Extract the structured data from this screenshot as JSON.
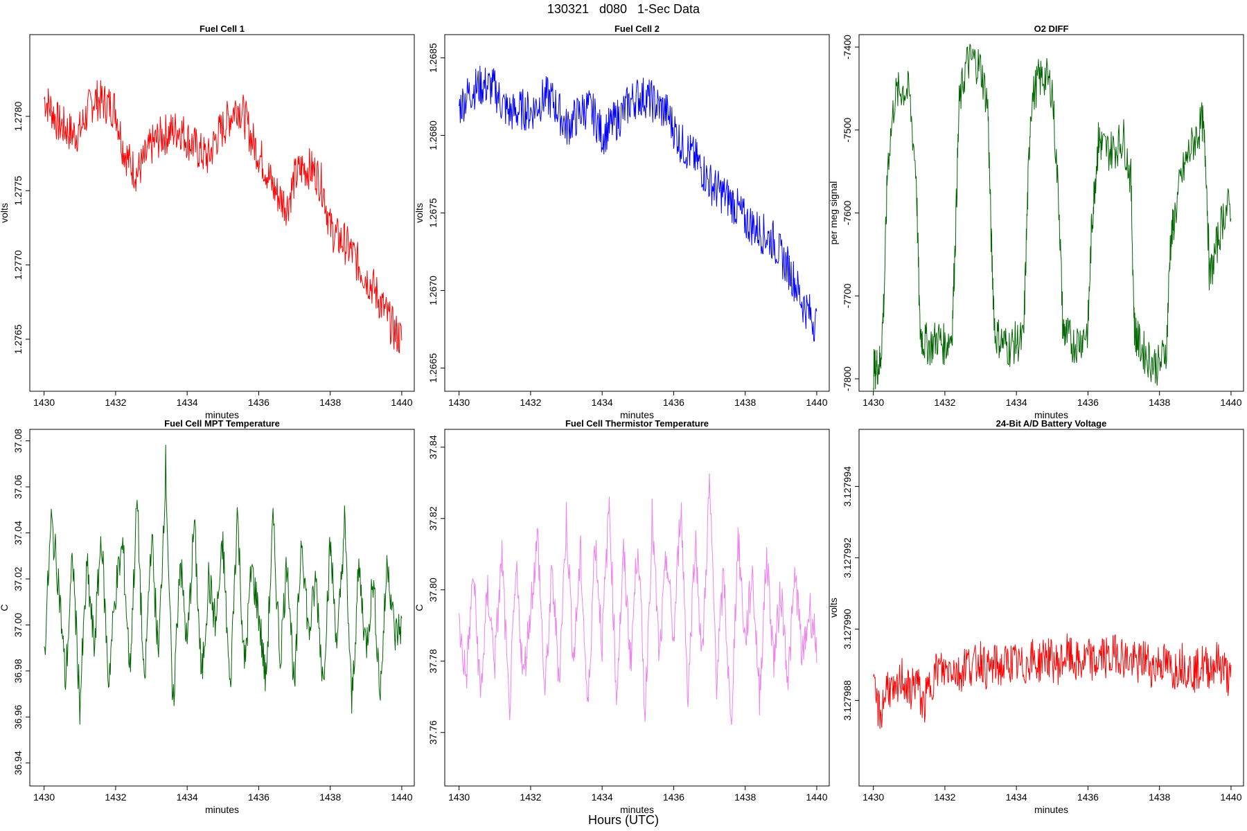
{
  "figure": {
    "title": "130321   d080   1-Sec Data",
    "xlabel": "Hours (UTC)"
  },
  "chart_data": [
    {
      "type": "line",
      "title": "Fuel Cell 1",
      "xlabel": "minutes",
      "ylabel": "volts",
      "color": "#ff0000",
      "xlim": [
        1429.6,
        1440.35
      ],
      "ylim": [
        1.27615,
        1.27855
      ],
      "xticks": [
        "1430",
        "1432",
        "1434",
        "1436",
        "1438",
        "1440"
      ],
      "yticks": [
        "1.2765",
        "1.2770",
        "1.2775",
        "1.2780"
      ],
      "series": [
        {
          "x": [
            1430.0,
            1430.2,
            1430.4,
            1430.6,
            1430.8,
            1431.0,
            1431.2,
            1431.4,
            1431.6,
            1431.8,
            1432.0,
            1432.2,
            1432.4,
            1432.6,
            1432.8,
            1433.0,
            1433.2,
            1433.4,
            1433.6,
            1433.8,
            1434.0,
            1434.2,
            1434.4,
            1434.6,
            1434.8,
            1435.0,
            1435.2,
            1435.4,
            1435.6,
            1435.8,
            1436.0,
            1436.2,
            1436.4,
            1436.6,
            1436.8,
            1437.0,
            1437.2,
            1437.4,
            1437.6,
            1437.8,
            1438.0,
            1438.2,
            1438.4,
            1438.6,
            1438.8,
            1439.0,
            1439.2,
            1439.4,
            1439.6,
            1439.8,
            1440.0
          ],
          "y": [
            1.27812,
            1.27805,
            1.27795,
            1.27792,
            1.27788,
            1.2779,
            1.27802,
            1.27812,
            1.2781,
            1.27808,
            1.27805,
            1.2778,
            1.27768,
            1.27762,
            1.2777,
            1.2778,
            1.27785,
            1.27788,
            1.2779,
            1.27792,
            1.27785,
            1.2778,
            1.27775,
            1.27772,
            1.27785,
            1.27792,
            1.278,
            1.27808,
            1.278,
            1.27785,
            1.27775,
            1.27765,
            1.27752,
            1.27745,
            1.2774,
            1.27758,
            1.27765,
            1.27765,
            1.27762,
            1.27752,
            1.27725,
            1.27718,
            1.27715,
            1.27708,
            1.277,
            1.27692,
            1.27685,
            1.27675,
            1.27665,
            1.27655,
            1.2765
          ]
        }
      ]
    },
    {
      "type": "line",
      "title": "Fuel Cell 2",
      "xlabel": "minutes",
      "ylabel": "volts",
      "color": "#0000ff",
      "xlim": [
        1429.6,
        1440.35
      ],
      "ylim": [
        1.26635,
        1.26865
      ],
      "xticks": [
        "1430",
        "1432",
        "1434",
        "1436",
        "1438",
        "1440"
      ],
      "yticks": [
        "1.2665",
        "1.2670",
        "1.2675",
        "1.2680",
        "1.2685"
      ],
      "series": [
        {
          "x": [
            1430.0,
            1430.2,
            1430.4,
            1430.6,
            1430.8,
            1431.0,
            1431.2,
            1431.4,
            1431.6,
            1431.8,
            1432.0,
            1432.2,
            1432.4,
            1432.6,
            1432.8,
            1433.0,
            1433.2,
            1433.4,
            1433.6,
            1433.8,
            1434.0,
            1434.2,
            1434.4,
            1434.6,
            1434.8,
            1435.0,
            1435.2,
            1435.4,
            1435.6,
            1435.8,
            1436.0,
            1436.2,
            1436.4,
            1436.6,
            1436.8,
            1437.0,
            1437.2,
            1437.4,
            1437.6,
            1437.8,
            1438.0,
            1438.2,
            1438.4,
            1438.6,
            1438.8,
            1439.0,
            1439.2,
            1439.4,
            1439.6,
            1439.8,
            1440.0
          ],
          "y": [
            1.26818,
            1.26825,
            1.2683,
            1.26832,
            1.26832,
            1.2683,
            1.2682,
            1.26815,
            1.26815,
            1.26817,
            1.26815,
            1.2682,
            1.26825,
            1.26823,
            1.26815,
            1.26805,
            1.2681,
            1.26815,
            1.26818,
            1.26812,
            1.268,
            1.26805,
            1.2681,
            1.26815,
            1.26822,
            1.26825,
            1.26825,
            1.26822,
            1.26818,
            1.26815,
            1.26805,
            1.26795,
            1.2679,
            1.26785,
            1.26778,
            1.2677,
            1.26765,
            1.26762,
            1.26758,
            1.26752,
            1.26745,
            1.26742,
            1.26738,
            1.26735,
            1.26732,
            1.26722,
            1.26715,
            1.26705,
            1.26692,
            1.26685,
            1.26678
          ]
        }
      ]
    },
    {
      "type": "line",
      "title": "O2 DIFF",
      "xlabel": "minutes",
      "ylabel": "per meg signal",
      "color": "#006400",
      "xlim": [
        1429.6,
        1440.35
      ],
      "ylim": [
        -7815,
        -7385
      ],
      "xticks": [
        "1430",
        "1432",
        "1434",
        "1436",
        "1438",
        "1440"
      ],
      "yticks": [
        "-7800",
        "-7700",
        "-7600",
        "-7500",
        "-7400"
      ],
      "series": [
        {
          "x": [
            1430.0,
            1430.1,
            1430.2,
            1430.3,
            1430.4,
            1430.6,
            1430.8,
            1431.0,
            1431.2,
            1431.3,
            1431.4,
            1431.6,
            1431.8,
            1432.0,
            1432.2,
            1432.3,
            1432.4,
            1432.6,
            1432.8,
            1433.0,
            1433.2,
            1433.3,
            1433.4,
            1433.6,
            1433.8,
            1434.0,
            1434.2,
            1434.3,
            1434.4,
            1434.6,
            1434.8,
            1435.0,
            1435.2,
            1435.3,
            1435.4,
            1435.6,
            1435.8,
            1436.0,
            1436.1,
            1436.2,
            1436.3,
            1436.4,
            1436.6,
            1436.8,
            1437.0,
            1437.2,
            1437.3,
            1437.4,
            1437.6,
            1437.8,
            1438.0,
            1438.2,
            1438.3,
            1438.4,
            1438.6,
            1438.8,
            1439.0,
            1439.2,
            1439.3,
            1439.4,
            1439.6,
            1439.8,
            1440.0
          ],
          "y": [
            -7790,
            -7785,
            -7780,
            -7700,
            -7540,
            -7460,
            -7450,
            -7455,
            -7555,
            -7740,
            -7755,
            -7760,
            -7750,
            -7760,
            -7745,
            -7620,
            -7470,
            -7420,
            -7415,
            -7425,
            -7470,
            -7640,
            -7745,
            -7755,
            -7762,
            -7755,
            -7755,
            -7600,
            -7470,
            -7440,
            -7435,
            -7450,
            -7600,
            -7740,
            -7748,
            -7758,
            -7752,
            -7740,
            -7620,
            -7560,
            -7510,
            -7520,
            -7525,
            -7520,
            -7510,
            -7560,
            -7740,
            -7755,
            -7770,
            -7780,
            -7785,
            -7760,
            -7640,
            -7610,
            -7560,
            -7530,
            -7510,
            -7490,
            -7540,
            -7680,
            -7640,
            -7600,
            -7590
          ]
        }
      ]
    },
    {
      "type": "line",
      "title": "Fuel Cell MPT Temperature",
      "xlabel": "minutes",
      "ylabel": "C",
      "color": "#006400",
      "xlim": [
        1429.6,
        1440.35
      ],
      "ylim": [
        36.93,
        37.085
      ],
      "xticks": [
        "1430",
        "1432",
        "1434",
        "1436",
        "1438",
        "1440"
      ],
      "yticks": [
        "36.94",
        "36.96",
        "36.98",
        "37.00",
        "37.02",
        "37.04",
        "37.06",
        "37.08"
      ],
      "series": [
        {
          "x": [
            1430.0,
            1430.2,
            1430.4,
            1430.6,
            1430.8,
            1431.0,
            1431.2,
            1431.4,
            1431.6,
            1431.8,
            1432.0,
            1432.2,
            1432.4,
            1432.6,
            1432.8,
            1433.0,
            1433.2,
            1433.4,
            1433.6,
            1433.8,
            1434.0,
            1434.2,
            1434.4,
            1434.6,
            1434.8,
            1435.0,
            1435.2,
            1435.4,
            1435.6,
            1435.8,
            1436.0,
            1436.2,
            1436.4,
            1436.6,
            1436.8,
            1437.0,
            1437.2,
            1437.4,
            1437.6,
            1437.8,
            1438.0,
            1438.2,
            1438.4,
            1438.6,
            1438.8,
            1439.0,
            1439.2,
            1439.4,
            1439.6,
            1439.8,
            1440.0
          ],
          "y": [
            36.985,
            37.045,
            37.02,
            36.975,
            37.03,
            36.965,
            37.025,
            36.99,
            37.04,
            36.975,
            37.015,
            37.035,
            36.98,
            37.055,
            36.97,
            37.04,
            36.985,
            37.07,
            36.96,
            37.03,
            36.99,
            37.045,
            36.975,
            37.02,
            37.0,
            37.035,
            36.97,
            37.05,
            36.98,
            37.025,
            37.005,
            36.975,
            37.045,
            36.985,
            37.03,
            36.97,
            37.04,
            36.995,
            37.02,
            36.975,
            37.035,
            36.99,
            37.045,
            36.965,
            37.025,
            36.99,
            37.02,
            36.97,
            37.03,
            36.995,
            37.0
          ]
        }
      ]
    },
    {
      "type": "line",
      "title": "Fuel Cell Thermistor Temperature",
      "xlabel": "minutes",
      "ylabel": "C",
      "color": "#ee82ee",
      "xlim": [
        1429.6,
        1440.35
      ],
      "ylim": [
        37.745,
        37.845
      ],
      "xticks": [
        "1430",
        "1432",
        "1434",
        "1436",
        "1438",
        "1440"
      ],
      "yticks": [
        "37.76",
        "37.78",
        "37.80",
        "37.82",
        "37.84"
      ],
      "series": [
        {
          "x": [
            1430.0,
            1430.2,
            1430.4,
            1430.6,
            1430.8,
            1431.0,
            1431.2,
            1431.4,
            1431.6,
            1431.8,
            1432.0,
            1432.2,
            1432.4,
            1432.6,
            1432.8,
            1433.0,
            1433.2,
            1433.4,
            1433.6,
            1433.8,
            1434.0,
            1434.2,
            1434.4,
            1434.6,
            1434.8,
            1435.0,
            1435.2,
            1435.4,
            1435.6,
            1435.8,
            1436.0,
            1436.2,
            1436.4,
            1436.6,
            1436.8,
            1437.0,
            1437.2,
            1437.4,
            1437.6,
            1437.8,
            1438.0,
            1438.2,
            1438.4,
            1438.6,
            1438.8,
            1439.0,
            1439.2,
            1439.4,
            1439.6,
            1439.8,
            1440.0
          ],
          "y": [
            37.79,
            37.775,
            37.805,
            37.77,
            37.8,
            37.78,
            37.81,
            37.765,
            37.805,
            37.775,
            37.795,
            37.815,
            37.77,
            37.805,
            37.775,
            37.82,
            37.78,
            37.81,
            37.765,
            37.815,
            37.785,
            37.825,
            37.77,
            37.81,
            37.78,
            37.815,
            37.765,
            37.82,
            37.78,
            37.81,
            37.785,
            37.825,
            37.77,
            37.815,
            37.78,
            37.83,
            37.775,
            37.805,
            37.76,
            37.815,
            37.785,
            37.805,
            37.77,
            37.81,
            37.78,
            37.8,
            37.775,
            37.805,
            37.78,
            37.795,
            37.785
          ]
        }
      ]
    },
    {
      "type": "line",
      "title": "24-Bit A/D Battery Voltage",
      "xlabel": "minutes",
      "ylabel": "volts",
      "color": "#ff0000",
      "xlim": [
        1429.6,
        1440.35
      ],
      "ylim": [
        3.1279856,
        3.1279956
      ],
      "xticks": [
        "1430",
        "1432",
        "1434",
        "1436",
        "1438",
        "1440"
      ],
      "yticks": [
        "3.127988",
        "3.127990",
        "3.127992",
        "3.127994"
      ],
      "series": [
        {
          "x": [
            1430.0,
            1430.2,
            1430.4,
            1430.6,
            1430.8,
            1431.0,
            1431.2,
            1431.4,
            1431.6,
            1431.8,
            1432.0,
            1432.2,
            1432.4,
            1432.6,
            1432.8,
            1433.0,
            1433.2,
            1433.4,
            1433.6,
            1433.8,
            1434.0,
            1434.2,
            1434.4,
            1434.6,
            1434.8,
            1435.0,
            1435.2,
            1435.4,
            1435.6,
            1435.8,
            1436.0,
            1436.2,
            1436.4,
            1436.6,
            1436.8,
            1437.0,
            1437.2,
            1437.4,
            1437.6,
            1437.8,
            1438.0,
            1438.2,
            1438.4,
            1438.6,
            1438.8,
            1439.0,
            1439.2,
            1439.4,
            1439.6,
            1439.8,
            1440.0
          ],
          "y": [
            3.1279882,
            3.1279876,
            3.1279885,
            3.127988,
            3.1279887,
            3.1279882,
            3.1279886,
            3.1279878,
            3.1279885,
            3.1279889,
            3.1279888,
            3.127989,
            3.1279887,
            3.1279891,
            3.1279889,
            3.1279892,
            3.1279888,
            3.127989,
            3.1279889,
            3.1279891,
            3.127989,
            3.1279889,
            3.1279892,
            3.127989,
            3.1279893,
            3.1279891,
            3.127989,
            3.1279893,
            3.1279891,
            3.127989,
            3.1279892,
            3.127989,
            3.1279893,
            3.1279891,
            3.1279894,
            3.1279892,
            3.1279891,
            3.127989,
            3.1279892,
            3.1279889,
            3.1279891,
            3.127989,
            3.1279888,
            3.1279891,
            3.1279889,
            3.1279888,
            3.127989,
            3.1279889,
            3.1279891,
            3.1279889,
            3.1279885
          ]
        }
      ]
    }
  ]
}
